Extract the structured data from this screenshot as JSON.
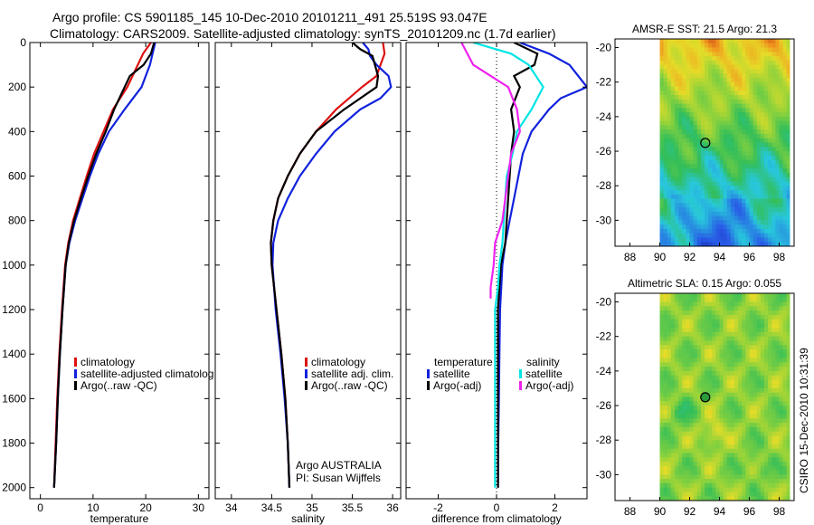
{
  "header": {
    "line1": "Argo profile: CS 5901185_145 10-Dec-2010 20101211_491 25.519S 93.047E",
    "line2": "Climatology: CARS2009. Satellite-adjusted climatology: synTS_20101209.nc (1.7d earlier)"
  },
  "footer": {
    "stamp": "CSIRO 15-Dec-2010 10:31:39"
  },
  "colors": {
    "climatology": "#dd1111",
    "satellite": "#1122dd",
    "argo": "#000000",
    "satellite_salinity": "#00e5e5",
    "argo_salinity_adj": "#ee22ee"
  },
  "chart_data": [
    {
      "type": "line",
      "xlabel": "temperature",
      "ylabel": "",
      "xlim": [
        -2,
        32
      ],
      "ylim": [
        2050,
        0
      ],
      "xticks": [
        "0",
        "10",
        "20",
        "30"
      ],
      "xtick_values": [
        0,
        10,
        20,
        30
      ],
      "yticks": [
        "0",
        "200",
        "400",
        "600",
        "800",
        "1000",
        "1200",
        "1400",
        "1600",
        "1800",
        "2000"
      ],
      "ytick_values": [
        0,
        200,
        400,
        600,
        800,
        1000,
        1200,
        1400,
        1600,
        1800,
        2000
      ],
      "legend": [
        {
          "label": "climatology",
          "color": "#dd1111"
        },
        {
          "label": "satellite-adjusted climatolog",
          "color": "#1122dd"
        },
        {
          "label": "Argo(..raw -QC)",
          "color": "#000000"
        }
      ],
      "series": [
        {
          "name": "climatology",
          "color": "#dd1111",
          "depth": [
            0,
            50,
            100,
            200,
            300,
            400,
            500,
            600,
            700,
            800,
            900,
            1000,
            1200,
            1400,
            1600,
            1800,
            2000
          ],
          "values": [
            21.0,
            19.5,
            18.5,
            16.5,
            13.8,
            12.0,
            10.2,
            8.8,
            7.5,
            6.2,
            5.3,
            4.7,
            4.1,
            3.6,
            3.2,
            2.9,
            2.6
          ]
        },
        {
          "name": "satellite-adjusted climatology",
          "color": "#1122dd",
          "depth": [
            0,
            50,
            100,
            200,
            300,
            400,
            500,
            600,
            700,
            800,
            900,
            1000,
            1200,
            1400,
            1600,
            1800,
            2000
          ],
          "values": [
            21.8,
            21.3,
            20.8,
            19.2,
            16.0,
            13.0,
            11.0,
            9.4,
            8.0,
            6.6,
            5.5,
            4.8,
            4.2,
            3.7,
            3.3,
            3.0,
            2.6
          ]
        },
        {
          "name": "Argo(..raw -QC)",
          "color": "#000000",
          "depth": [
            0,
            50,
            100,
            150,
            200,
            300,
            400,
            500,
            600,
            700,
            800,
            900,
            1000,
            1200,
            1400,
            1600,
            1800,
            2000
          ],
          "values": [
            21.6,
            21.0,
            19.6,
            17.0,
            16.0,
            14.0,
            12.4,
            10.6,
            9.1,
            7.7,
            6.4,
            5.4,
            4.8,
            4.2,
            3.7,
            3.3,
            3.0,
            2.6
          ]
        }
      ]
    },
    {
      "type": "line",
      "xlabel": "salinity",
      "ylabel": "",
      "xlim": [
        33.8,
        36.1
      ],
      "ylim": [
        2050,
        0
      ],
      "xticks": [
        "34",
        "34.5",
        "35",
        "35.5",
        "36"
      ],
      "xtick_values": [
        34,
        34.5,
        35,
        35.5,
        36
      ],
      "legend": [
        {
          "label": "climatology",
          "color": "#dd1111"
        },
        {
          "label": "satellite adj. clim.",
          "color": "#1122dd"
        },
        {
          "label": "Argo(..raw -QC)",
          "color": "#000000"
        }
      ],
      "annotations": [
        "Argo AUSTRALIA",
        "PI: Susan Wijffels"
      ],
      "series": [
        {
          "name": "climatology",
          "color": "#dd1111",
          "depth": [
            0,
            50,
            100,
            150,
            200,
            300,
            400,
            500,
            600,
            700,
            800,
            900,
            1000,
            1200,
            1400,
            1600,
            1800,
            2000
          ],
          "values": [
            35.88,
            35.9,
            35.85,
            35.8,
            35.62,
            35.3,
            35.05,
            34.85,
            34.7,
            34.58,
            34.52,
            34.49,
            34.5,
            34.56,
            34.62,
            34.67,
            34.7,
            34.72
          ]
        },
        {
          "name": "satellite adj. clim.",
          "color": "#1122dd",
          "depth": [
            0,
            30,
            60,
            100,
            150,
            200,
            250,
            300,
            400,
            500,
            600,
            700,
            800,
            900,
            1000,
            1200,
            1400,
            1600,
            1800,
            2000
          ],
          "values": [
            35.63,
            35.7,
            35.72,
            35.8,
            35.95,
            35.98,
            35.85,
            35.6,
            35.28,
            35.05,
            34.85,
            34.7,
            34.58,
            34.52,
            34.51,
            34.55,
            34.61,
            34.66,
            34.7,
            34.72
          ]
        },
        {
          "name": "Argo(..raw -QC)",
          "color": "#000000",
          "depth": [
            0,
            30,
            60,
            100,
            150,
            200,
            300,
            400,
            500,
            600,
            700,
            800,
            900,
            1000,
            1200,
            1400,
            1600,
            1800,
            2000
          ],
          "values": [
            35.5,
            35.6,
            35.75,
            35.78,
            35.82,
            35.8,
            35.4,
            35.05,
            34.85,
            34.7,
            34.58,
            34.52,
            34.49,
            34.5,
            34.56,
            34.62,
            34.67,
            34.7,
            34.72
          ]
        }
      ]
    },
    {
      "type": "line",
      "xlabel": "difference from climatology",
      "ylabel": "",
      "xlim": [
        -3.1,
        3.1
      ],
      "ylim": [
        2050,
        0
      ],
      "xticks": [
        "-2",
        "0",
        "2"
      ],
      "xtick_values": [
        -2,
        0,
        2
      ],
      "legend_groups": [
        {
          "title": "temperature",
          "entries": [
            {
              "label": "satellite",
              "color": "#1122dd"
            },
            {
              "label": "Argo(-adj)",
              "color": "#000000"
            }
          ]
        },
        {
          "title": "salinity",
          "entries": [
            {
              "label": "satellite",
              "color": "#00e5e5"
            },
            {
              "label": "Argo(-adj)",
              "color": "#ee22ee"
            }
          ]
        }
      ],
      "series": [
        {
          "name": "temperature satellite",
          "color": "#1122dd",
          "depth": [
            0,
            50,
            100,
            200,
            250,
            300,
            400,
            500,
            600,
            700,
            800,
            900,
            1000,
            1200,
            1400,
            1600,
            1800,
            2000
          ],
          "values": [
            0.8,
            1.8,
            2.5,
            3.1,
            2.2,
            1.8,
            1.2,
            0.9,
            0.75,
            0.6,
            0.45,
            0.3,
            0.2,
            0.12,
            0.1,
            0.08,
            0.06,
            0.05
          ]
        },
        {
          "name": "temperature Argo(-adj)",
          "color": "#000000",
          "depth": [
            0,
            50,
            100,
            150,
            200,
            300,
            400,
            500,
            600,
            700,
            800,
            900,
            1000,
            1200,
            1400,
            1600,
            1800,
            2000
          ],
          "values": [
            0.6,
            1.4,
            1.3,
            0.6,
            0.8,
            0.5,
            0.6,
            0.5,
            0.45,
            0.4,
            0.35,
            0.3,
            0.15,
            0.05,
            0.05,
            0.05,
            0.05,
            0.05
          ]
        },
        {
          "name": "salinity satellite",
          "color": "#00e5e5",
          "depth": [
            0,
            50,
            100,
            200,
            300,
            400,
            500,
            600,
            700,
            800,
            900,
            1000,
            1100,
            1200,
            1400,
            1600,
            1800,
            2000
          ],
          "values": [
            -0.8,
            0.5,
            1.1,
            1.6,
            1.2,
            0.7,
            0.55,
            0.35,
            0.3,
            0.25,
            0.2,
            0.1,
            0.05,
            -0.05,
            -0.05,
            -0.05,
            -0.05,
            -0.05
          ]
        },
        {
          "name": "salinity Argo(-adj)",
          "color": "#ee22ee",
          "depth": [
            0,
            50,
            100,
            200,
            300,
            400,
            500,
            600,
            700,
            800,
            900,
            1000,
            1100,
            1150
          ],
          "values": [
            -1.2,
            -1.0,
            -0.8,
            0.4,
            0.7,
            0.8,
            0.5,
            0.4,
            0.3,
            0.2,
            -0.05,
            -0.1,
            -0.2,
            -0.2
          ]
        }
      ]
    },
    {
      "type": "heatmap",
      "title": "AMSR-E SST: 21.5 Argo: 21.3",
      "xlim": [
        87,
        99
      ],
      "ylim": [
        -31.5,
        -19.5
      ],
      "xticks": [
        "88",
        "90",
        "92",
        "94",
        "96",
        "98"
      ],
      "xtick_values": [
        88,
        90,
        92,
        94,
        96,
        98
      ],
      "yticks": [
        "-20",
        "-22",
        "-24",
        "-26",
        "-28",
        "-30"
      ],
      "ytick_values": [
        -20,
        -22,
        -24,
        -26,
        -28,
        -30
      ],
      "data_lon_range": [
        90,
        98.7
      ],
      "argo_position": {
        "lon": 93.047,
        "lat": -25.519
      }
    },
    {
      "type": "heatmap",
      "title": "Altimetric SLA: 0.15 Argo: 0.055",
      "xlim": [
        87,
        99
      ],
      "ylim": [
        -31.5,
        -19.5
      ],
      "xticks": [
        "88",
        "90",
        "92",
        "94",
        "96",
        "98"
      ],
      "xtick_values": [
        88,
        90,
        92,
        94,
        96,
        98
      ],
      "yticks": [
        "-20",
        "-22",
        "-24",
        "-26",
        "-28",
        "-30"
      ],
      "ytick_values": [
        -20,
        -22,
        -24,
        -26,
        -28,
        -30
      ],
      "data_lon_range": [
        90,
        98.7
      ],
      "argo_position": {
        "lon": 93.047,
        "lat": -25.519
      }
    }
  ]
}
